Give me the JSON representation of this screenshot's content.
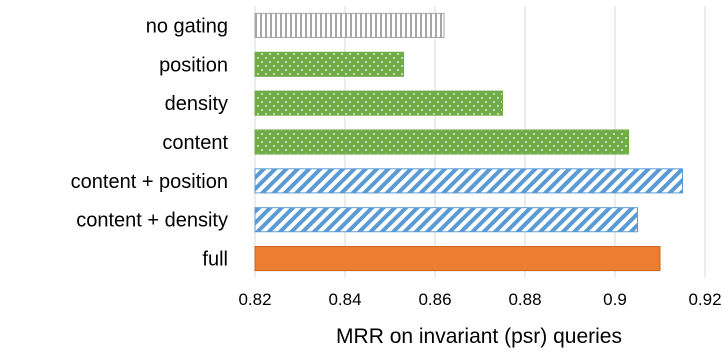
{
  "chart_data": {
    "type": "bar",
    "orientation": "horizontal",
    "categories": [
      "no gating",
      "position",
      "density",
      "content",
      "content + position",
      "content + density",
      "full"
    ],
    "values": [
      0.862,
      0.853,
      0.875,
      0.903,
      0.915,
      0.905,
      0.91
    ],
    "xlabel": "MRR on invariant (psr) queries",
    "ylabel": "",
    "xlim": [
      0.82,
      0.92
    ],
    "xticks": [
      "0.82",
      "0.84",
      "0.86",
      "0.88",
      "0.9",
      "0.92"
    ],
    "xtick_values": [
      0.82,
      0.84,
      0.86,
      0.88,
      0.9,
      0.92
    ],
    "grid": true,
    "bar_styles": [
      "vertical-stripes-gray",
      "dots-green",
      "dots-green",
      "dots-green",
      "diagonal-stripes-blue",
      "diagonal-stripes-blue",
      "solid-orange"
    ],
    "colors": {
      "gray": "#a6a6a6",
      "green": "#70ad47",
      "blue": "#5b9bd5",
      "orange": "#ed7d31",
      "grid": "#d9d9d9"
    }
  }
}
